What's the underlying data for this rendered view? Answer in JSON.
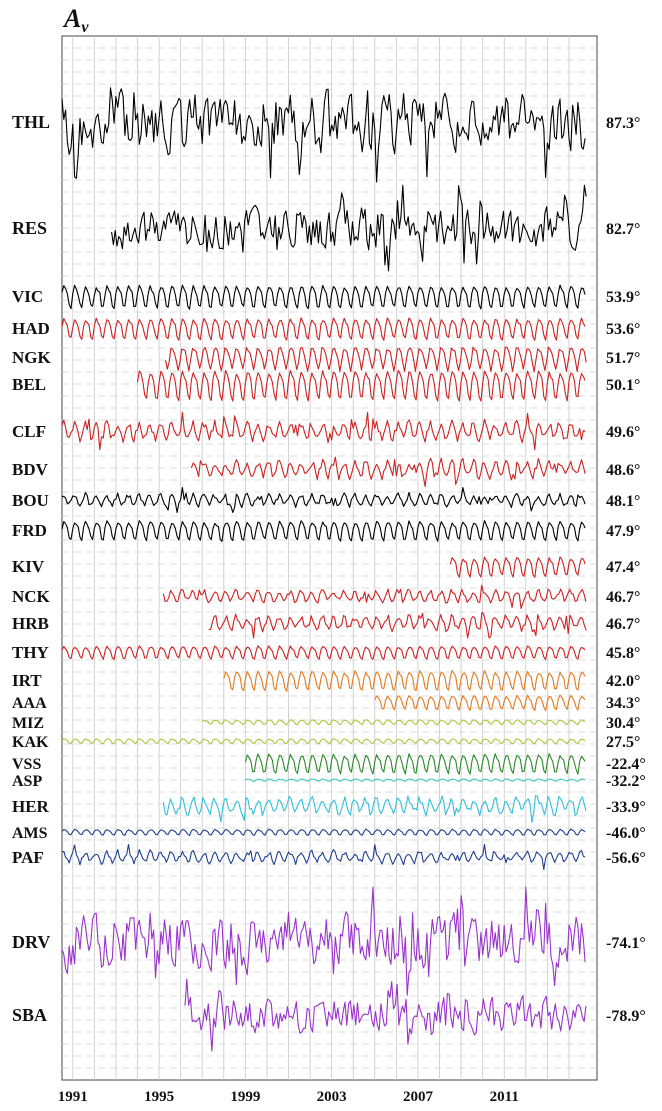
{
  "chart_data": {
    "type": "line",
    "title": "A",
    "title_subscript": "v",
    "x_ticks": [
      "1991",
      "1995",
      "1999",
      "2003",
      "2007",
      "2011"
    ],
    "x_range": [
      1990.5,
      2015.3
    ],
    "grid": true,
    "stations": [
      {
        "name": "THL",
        "lat": "87.3°",
        "color": "#000000",
        "start": 1990.5,
        "end": 2014.8,
        "amp": 1.0,
        "mode": "noisy",
        "seed": 11
      },
      {
        "name": "RES",
        "lat": "82.7°",
        "color": "#000000",
        "start": 1992.8,
        "end": 2014.8,
        "amp": 0.95,
        "mode": "noisy",
        "seed": 12
      },
      {
        "name": "VIC",
        "lat": "53.9°",
        "color": "#000000",
        "start": 1990.5,
        "end": 2014.8,
        "amp": 1.0,
        "mode": "seasonal",
        "seed": 13
      },
      {
        "name": "HAD",
        "lat": "53.6°",
        "color": "#cc2222",
        "start": 1990.5,
        "end": 2014.8,
        "amp": 1.0,
        "mode": "seasonal",
        "seed": 14
      },
      {
        "name": "NGK",
        "lat": "51.7°",
        "color": "#cc2222",
        "start": 1995.3,
        "end": 2014.8,
        "amp": 1.0,
        "mode": "seasonal",
        "seed": 15
      },
      {
        "name": "BEL",
        "lat": "50.1°",
        "color": "#cc2222",
        "start": 1994.0,
        "end": 2014.8,
        "amp": 1.0,
        "mode": "seasonal",
        "seed": 16
      },
      {
        "name": "CLF",
        "lat": "49.6°",
        "color": "#cc2222",
        "start": 1990.5,
        "end": 2014.8,
        "amp": 1.0,
        "mode": "mixed",
        "seed": 17
      },
      {
        "name": "BDV",
        "lat": "48.6°",
        "color": "#cc2222",
        "start": 1996.5,
        "end": 2014.8,
        "amp": 1.0,
        "mode": "mixed",
        "seed": 18
      },
      {
        "name": "BOU",
        "lat": "48.1°",
        "color": "#000000",
        "start": 1990.5,
        "end": 2014.8,
        "amp": 1.0,
        "mode": "mixed",
        "seed": 19
      },
      {
        "name": "FRD",
        "lat": "47.9°",
        "color": "#000000",
        "start": 1990.5,
        "end": 2014.8,
        "amp": 1.0,
        "mode": "seasonal",
        "seed": 20
      },
      {
        "name": "KIV",
        "lat": "47.4°",
        "color": "#cc2222",
        "start": 2008.5,
        "end": 2014.8,
        "amp": 1.0,
        "mode": "seasonal",
        "seed": 21
      },
      {
        "name": "NCK",
        "lat": "46.7°",
        "color": "#cc2222",
        "start": 1995.2,
        "end": 2014.8,
        "amp": 1.0,
        "mode": "mixed",
        "seed": 22
      },
      {
        "name": "HRB",
        "lat": "46.7°",
        "color": "#cc2222",
        "start": 1997.3,
        "end": 2014.8,
        "amp": 1.0,
        "mode": "mixed",
        "seed": 23
      },
      {
        "name": "THY",
        "lat": "45.8°",
        "color": "#cc2222",
        "start": 1990.5,
        "end": 2014.8,
        "amp": 1.0,
        "mode": "seasonal",
        "seed": 24
      },
      {
        "name": "IRT",
        "lat": "42.0°",
        "color": "#e07b20",
        "start": 1998.0,
        "end": 2014.8,
        "amp": 1.0,
        "mode": "seasonal",
        "seed": 25
      },
      {
        "name": "AAA",
        "lat": "34.3°",
        "color": "#e07b20",
        "start": 2005.0,
        "end": 2014.8,
        "amp": 0.9,
        "mode": "seasonal",
        "seed": 26
      },
      {
        "name": "MIZ",
        "lat": "30.4°",
        "color": "#a8c840",
        "start": 1997.0,
        "end": 2014.8,
        "amp": 0.5,
        "mode": "seasonal",
        "seed": 27
      },
      {
        "name": "KAK",
        "lat": "27.5°",
        "color": "#a8c840",
        "start": 1990.5,
        "end": 2014.8,
        "amp": 0.5,
        "mode": "seasonal",
        "seed": 28
      },
      {
        "name": "VSS",
        "lat": "-22.4°",
        "color": "#2a8a2a",
        "start": 1999.0,
        "end": 2014.8,
        "amp": 1.0,
        "mode": "seasonal",
        "seed": 29
      },
      {
        "name": "ASP",
        "lat": "-32.2°",
        "color": "#40c8b8",
        "start": 1999.0,
        "end": 2014.8,
        "amp": 0.35,
        "mode": "seasonal",
        "seed": 30
      },
      {
        "name": "HER",
        "lat": "-33.9°",
        "color": "#30c0d8",
        "start": 1995.2,
        "end": 2014.8,
        "amp": 1.0,
        "mode": "mixed",
        "seed": 31
      },
      {
        "name": "AMS",
        "lat": "-46.0°",
        "color": "#1f3f8f",
        "start": 1990.5,
        "end": 2014.8,
        "amp": 0.6,
        "mode": "seasonal",
        "seed": 32
      },
      {
        "name": "PAF",
        "lat": "-56.6°",
        "color": "#1f3f8f",
        "start": 1990.5,
        "end": 2014.8,
        "amp": 1.0,
        "mode": "mixed",
        "seed": 33
      },
      {
        "name": "DRV",
        "lat": "-74.1°",
        "color": "#9933cc",
        "start": 1990.5,
        "end": 2014.8,
        "amp": 1.0,
        "mode": "noisy",
        "seed": 34
      },
      {
        "name": "SBA",
        "lat": "-78.9°",
        "color": "#9933cc",
        "start": 1996.2,
        "end": 2014.8,
        "amp": 0.9,
        "mode": "noisy",
        "seed": 35
      }
    ]
  }
}
